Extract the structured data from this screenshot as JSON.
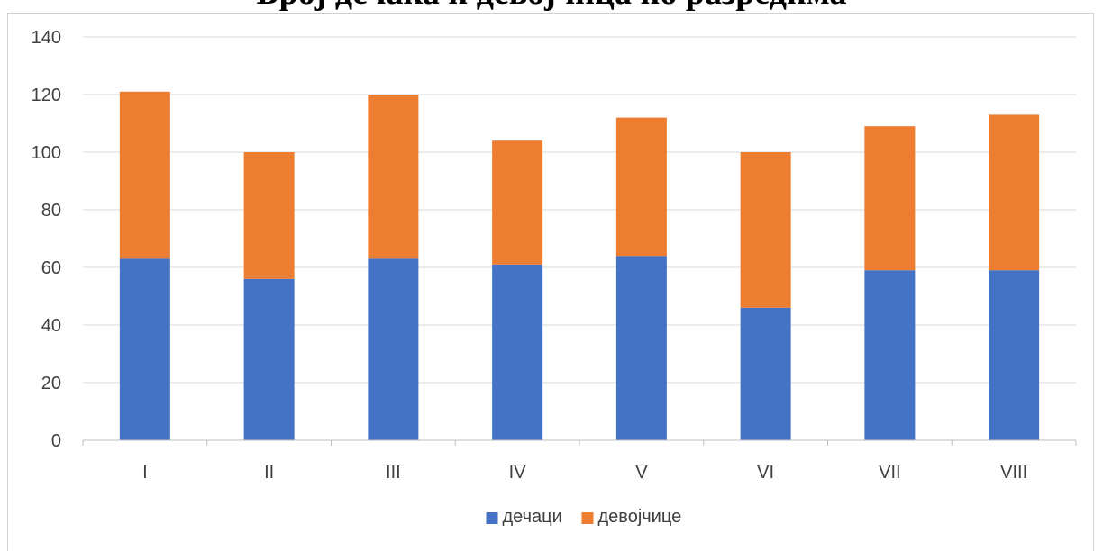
{
  "chart_data": {
    "type": "bar",
    "stacked": true,
    "title": "Број дечака и девојчица по разредима",
    "categories": [
      "I",
      "II",
      "III",
      "IV",
      "V",
      "VI",
      "VII",
      "VIII"
    ],
    "series": [
      {
        "name": "дечаци",
        "color": "#4472C4",
        "values": [
          63,
          56,
          63,
          61,
          64,
          46,
          59,
          59
        ]
      },
      {
        "name": "девојчице",
        "color": "#ED7D31",
        "values": [
          58,
          44,
          57,
          43,
          48,
          54,
          50,
          54
        ]
      }
    ],
    "ylim": [
      0,
      140
    ],
    "yticks": [
      "0",
      "20",
      "40",
      "60",
      "80",
      "100",
      "120",
      "140"
    ],
    "grid": true,
    "legend_position": "bottom"
  }
}
